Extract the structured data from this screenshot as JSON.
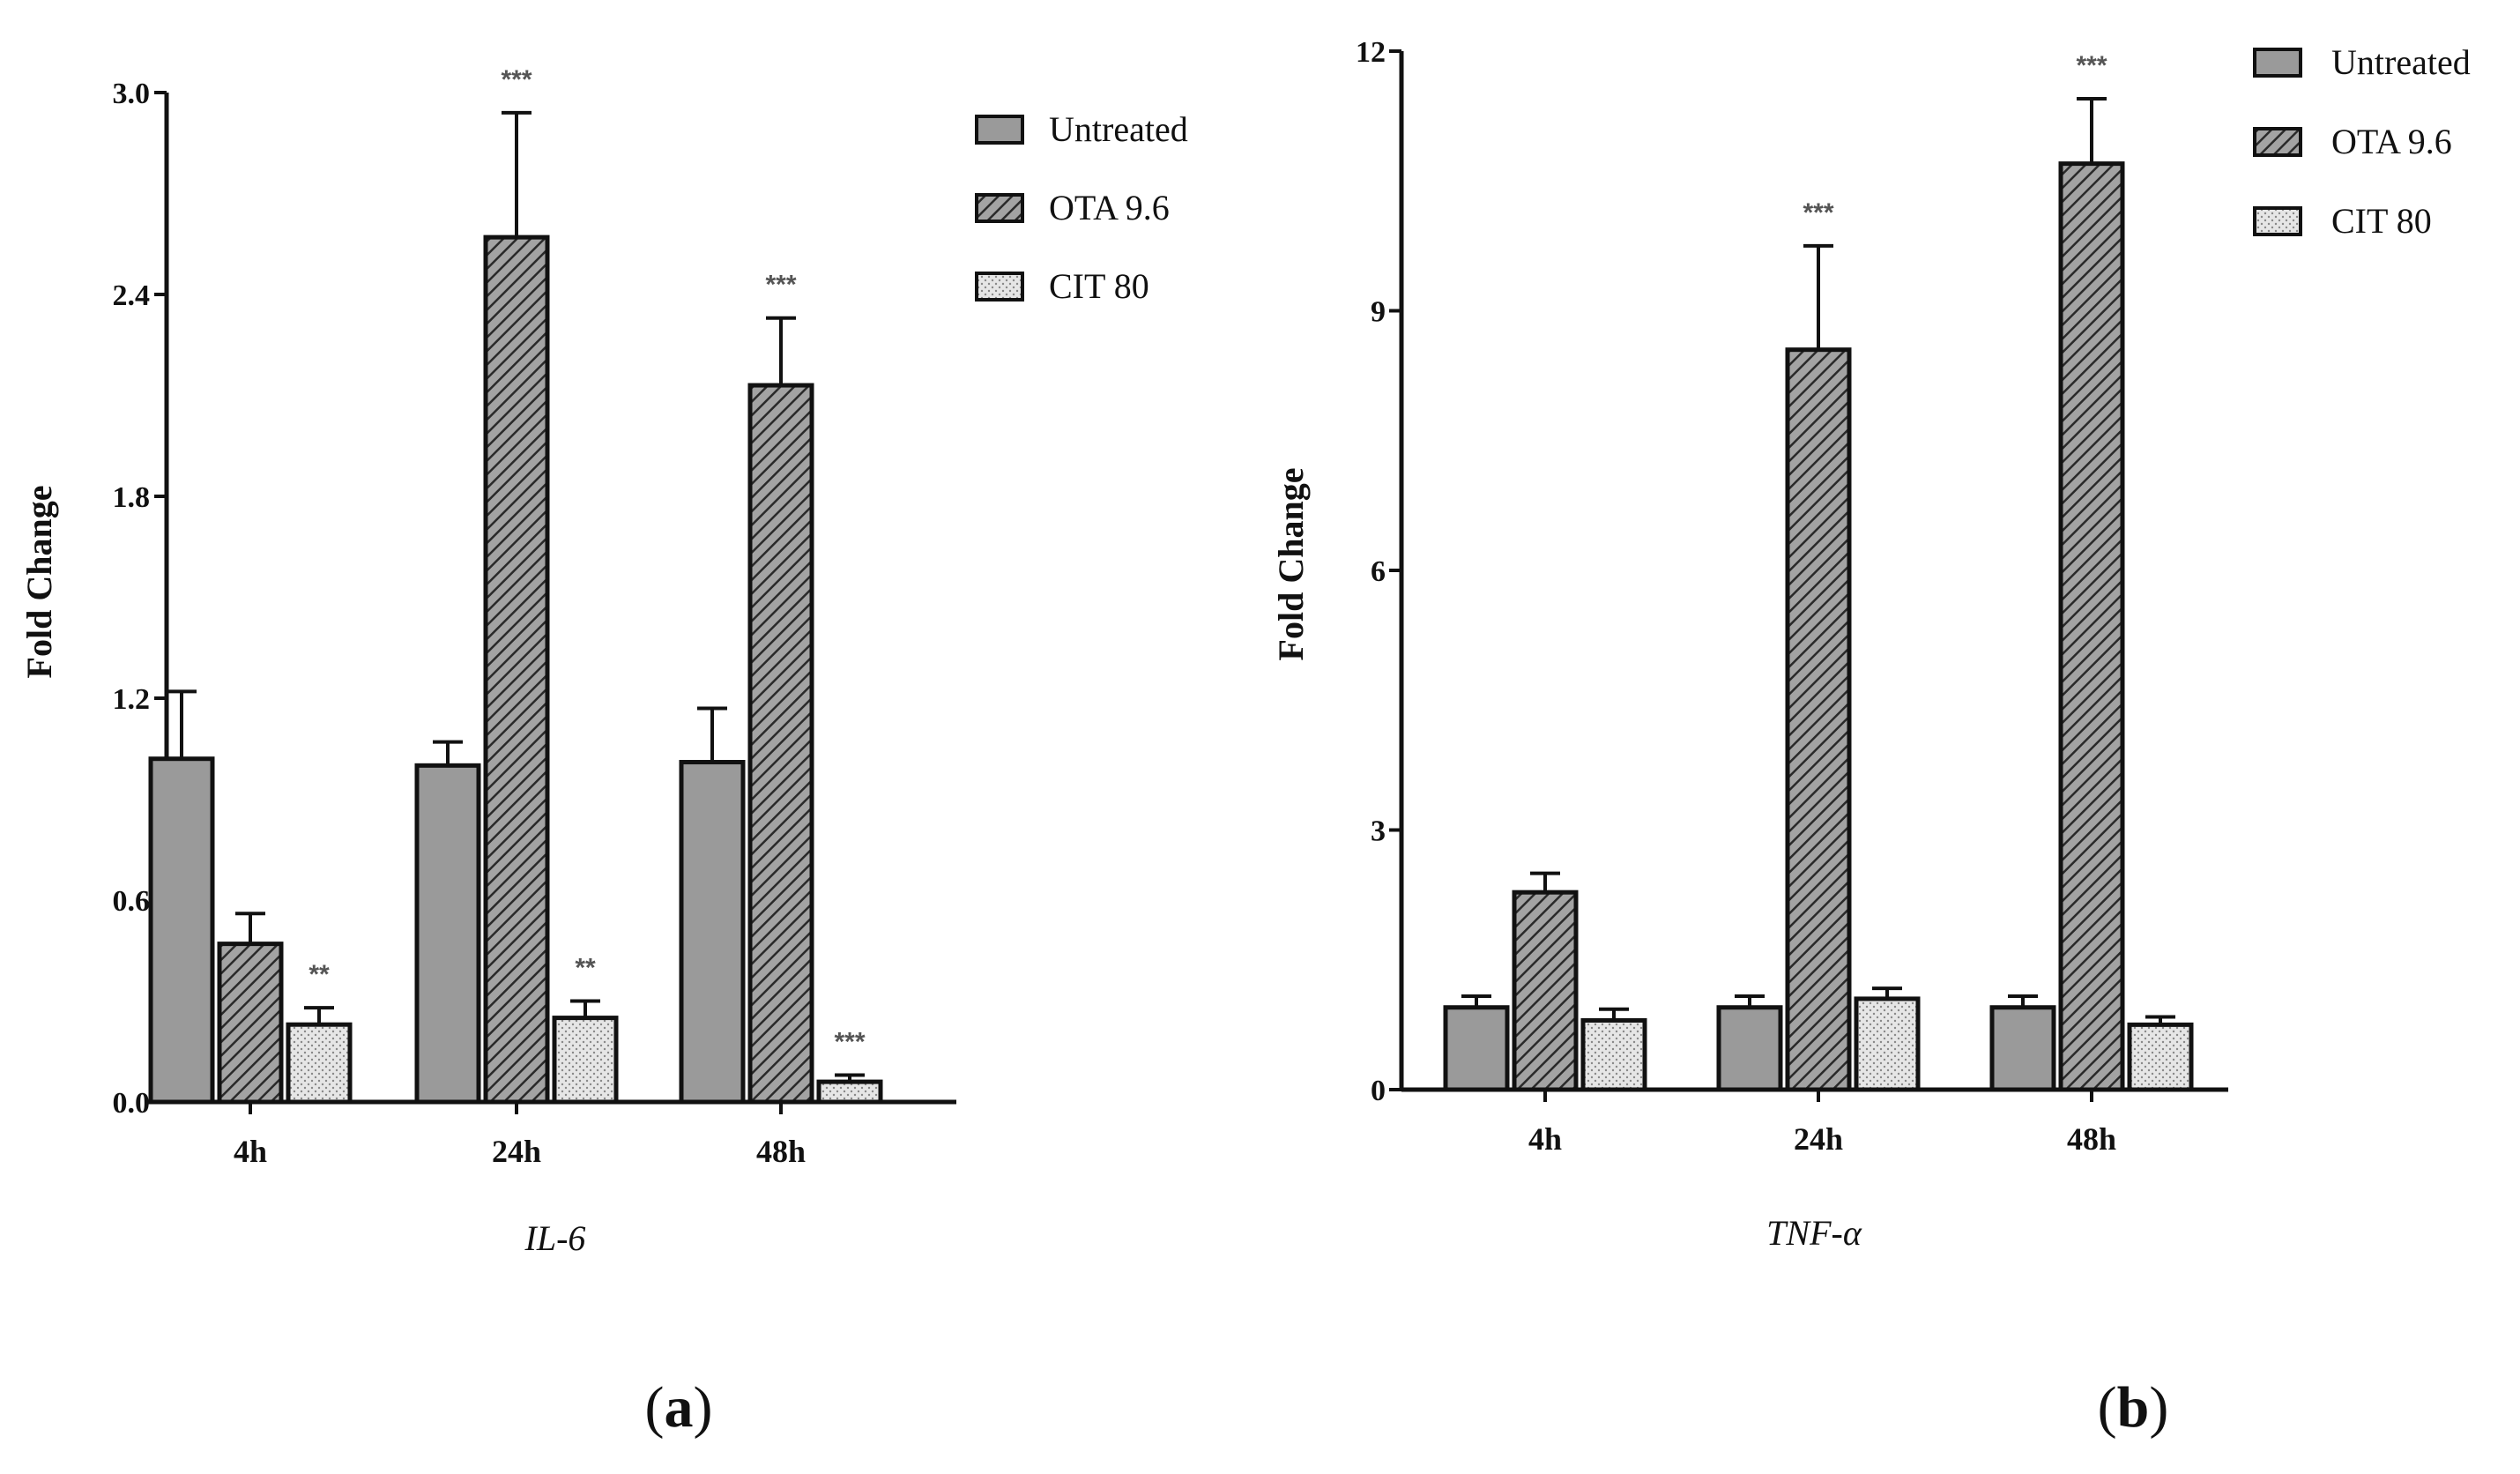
{
  "series_styles": {
    "Untreated": {
      "fill": "#9a9a9a",
      "pattern": "solid"
    },
    "OTA 9.6": {
      "fill": "#9a9a9a",
      "pattern": "hatch"
    },
    "CIT 80": {
      "fill": "#e4e4e4",
      "pattern": "dots"
    }
  },
  "chart_data": [
    {
      "type": "bar",
      "panel": "a",
      "panel_letter": "a",
      "title": "",
      "xlabel": "IL-6",
      "ylabel": "Fold Change",
      "ylim": [
        0,
        3.0
      ],
      "yticks": [
        "0.0",
        "0.6",
        "1.2",
        "1.8",
        "2.4",
        "3.0"
      ],
      "categories": [
        "4h",
        "24h",
        "48h"
      ],
      "legend_position": "top-right",
      "series": [
        {
          "name": "Untreated",
          "values": [
            1.02,
            1.0,
            1.01
          ],
          "errors": [
            0.2,
            0.07,
            0.16
          ],
          "significance": [
            "",
            "",
            ""
          ]
        },
        {
          "name": "OTA 9.6",
          "values": [
            0.47,
            2.57,
            2.13
          ],
          "errors": [
            0.09,
            0.37,
            0.2
          ],
          "significance": [
            "",
            "***",
            "***"
          ]
        },
        {
          "name": "CIT 80",
          "values": [
            0.23,
            0.25,
            0.06
          ],
          "errors": [
            0.05,
            0.05,
            0.02
          ],
          "significance": [
            "**",
            "**",
            "***"
          ]
        }
      ]
    },
    {
      "type": "bar",
      "panel": "b",
      "panel_letter": "b",
      "title": "",
      "xlabel": "TNF-α",
      "ylabel": "Fold Change",
      "ylim": [
        0,
        12
      ],
      "yticks": [
        "0",
        "3",
        "6",
        "9",
        "12"
      ],
      "categories": [
        "4h",
        "24h",
        "48h"
      ],
      "legend_position": "top-right",
      "series": [
        {
          "name": "Untreated",
          "values": [
            0.95,
            0.95,
            0.95
          ],
          "errors": [
            0.13,
            0.13,
            0.13
          ],
          "significance": [
            "",
            "",
            ""
          ]
        },
        {
          "name": "OTA 9.6",
          "values": [
            2.28,
            8.55,
            10.7
          ],
          "errors": [
            0.22,
            1.2,
            0.75
          ],
          "significance": [
            "",
            "***",
            "***"
          ]
        },
        {
          "name": "CIT 80",
          "values": [
            0.8,
            1.05,
            0.75
          ],
          "errors": [
            0.13,
            0.12,
            0.09
          ],
          "significance": [
            "",
            "",
            ""
          ]
        }
      ]
    }
  ]
}
